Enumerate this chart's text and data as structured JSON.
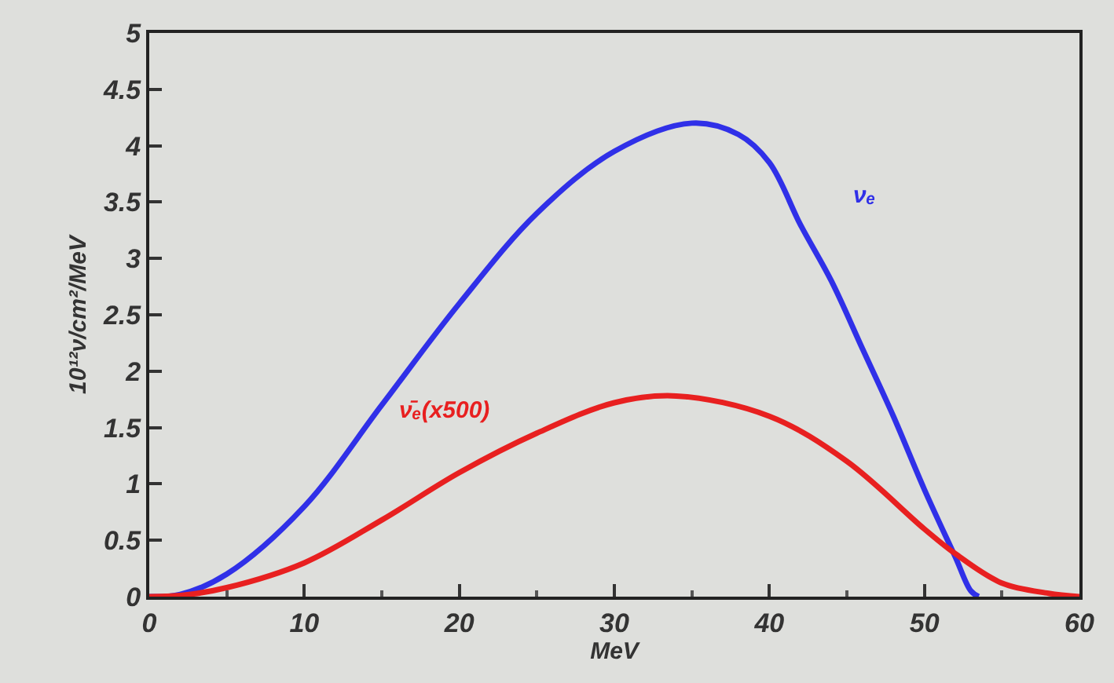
{
  "chart_data": {
    "type": "line",
    "xlabel": "MeV",
    "ylabel": "10¹²ν/cm²/MeV",
    "xlim": [
      0,
      60
    ],
    "xticks": [
      0,
      10,
      20,
      30,
      40,
      50,
      60
    ],
    "ylim": [
      0,
      5
    ],
    "yticks": [
      0,
      0.5,
      1,
      1.5,
      2,
      2.5,
      3,
      3.5,
      4,
      4.5,
      5
    ],
    "grid": false,
    "legend": false,
    "marker": "none",
    "line_style": "solid",
    "series": [
      {
        "name": "νₑ",
        "color": "#3030e8",
        "x": [
          0,
          2,
          5,
          10,
          15,
          20,
          25,
          30,
          35,
          38,
          40,
          42,
          44,
          46,
          48,
          50,
          52,
          53,
          53.5
        ],
        "values": [
          0,
          0.02,
          0.2,
          0.8,
          1.7,
          2.6,
          3.4,
          3.95,
          4.2,
          4.1,
          3.85,
          3.3,
          2.8,
          2.2,
          1.6,
          0.95,
          0.35,
          0.05,
          0
        ]
      },
      {
        "name": "ν̄ₑ(x500)",
        "color": "#e82020",
        "x": [
          0,
          2,
          5,
          10,
          15,
          20,
          25,
          30,
          34,
          40,
          45,
          50,
          52,
          55,
          58,
          60
        ],
        "values": [
          0,
          0.01,
          0.08,
          0.3,
          0.68,
          1.1,
          1.45,
          1.72,
          1.78,
          1.6,
          1.2,
          0.6,
          0.38,
          0.12,
          0.03,
          0
        ]
      }
    ]
  }
}
